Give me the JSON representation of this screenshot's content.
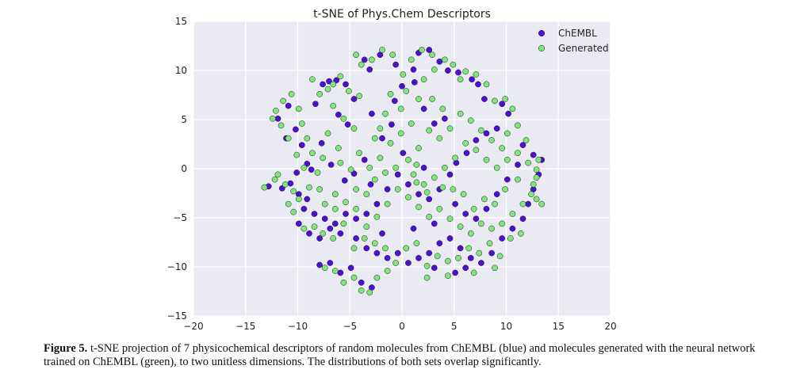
{
  "chart_data": {
    "type": "scatter",
    "title": "t-SNE of Phys.Chem Descriptors",
    "xlabel": "",
    "ylabel": "",
    "xlim": [
      -20,
      20
    ],
    "ylim": [
      -15,
      15
    ],
    "x_ticks": [
      -20,
      -15,
      -10,
      -5,
      0,
      5,
      10,
      15,
      20
    ],
    "y_ticks": [
      -15,
      -10,
      -5,
      0,
      5,
      10,
      15
    ],
    "grid": true,
    "legend_position": "top-right",
    "series": [
      {
        "name": "ChEMBL",
        "color": "#4b0fd6",
        "points": [
          [
            -12.8,
            -1.8
          ],
          [
            -11.5,
            -2.0
          ],
          [
            -10.7,
            -1.5
          ],
          [
            -10.9,
            6.4
          ],
          [
            -10.2,
            4.0
          ],
          [
            -9.6,
            2.4
          ],
          [
            -9.1,
            0.5
          ],
          [
            -8.7,
            -0.1
          ],
          [
            -8.3,
            6.6
          ],
          [
            -7.6,
            8.6
          ],
          [
            -7.0,
            8.9
          ],
          [
            -6.3,
            9.0
          ],
          [
            -5.4,
            8.6
          ],
          [
            -4.6,
            7.1
          ],
          [
            -6.1,
            5.5
          ],
          [
            -5.2,
            4.5
          ],
          [
            -7.7,
            2.6
          ],
          [
            -6.8,
            0.4
          ],
          [
            -5.5,
            -1.2
          ],
          [
            -4.6,
            -0.5
          ],
          [
            -3.6,
            0.9
          ],
          [
            -3.0,
            -1.6
          ],
          [
            -1.9,
            3.1
          ],
          [
            -1.0,
            4.5
          ],
          [
            -0.7,
            6.9
          ],
          [
            0.0,
            8.4
          ],
          [
            1.2,
            8.8
          ],
          [
            1.6,
            11.8
          ],
          [
            2.6,
            12.1
          ],
          [
            3.6,
            10.9
          ],
          [
            4.4,
            10.0
          ],
          [
            5.4,
            9.8
          ],
          [
            6.7,
            9.1
          ],
          [
            7.3,
            8.6
          ],
          [
            7.9,
            7.1
          ],
          [
            9.6,
            6.6
          ],
          [
            10.2,
            5.6
          ],
          [
            9.1,
            4.1
          ],
          [
            8.1,
            3.6
          ],
          [
            7.1,
            2.9
          ],
          [
            6.2,
            1.6
          ],
          [
            5.2,
            0.6
          ],
          [
            4.6,
            -0.6
          ],
          [
            3.6,
            -2.1
          ],
          [
            2.6,
            -3.1
          ],
          [
            1.6,
            -2.6
          ],
          [
            0.6,
            -1.6
          ],
          [
            -0.4,
            -0.6
          ],
          [
            -1.4,
            -2.1
          ],
          [
            -2.4,
            -3.6
          ],
          [
            -3.4,
            -4.6
          ],
          [
            -4.4,
            -5.1
          ],
          [
            -5.4,
            -4.6
          ],
          [
            -6.4,
            -5.6
          ],
          [
            -7.4,
            -5.1
          ],
          [
            -8.4,
            -4.6
          ],
          [
            -9.4,
            -4.1
          ],
          [
            -9.9,
            -5.6
          ],
          [
            -8.9,
            -6.6
          ],
          [
            -7.9,
            -7.1
          ],
          [
            -6.9,
            -6.1
          ],
          [
            -5.9,
            -6.6
          ],
          [
            -4.4,
            -7.1
          ],
          [
            -3.4,
            -8.1
          ],
          [
            -2.4,
            -8.6
          ],
          [
            -1.4,
            -9.1
          ],
          [
            -0.4,
            -8.6
          ],
          [
            0.6,
            -9.6
          ],
          [
            1.6,
            -9.1
          ],
          [
            2.6,
            -8.6
          ],
          [
            3.6,
            -7.6
          ],
          [
            4.6,
            -7.1
          ],
          [
            5.6,
            -8.1
          ],
          [
            6.6,
            -9.1
          ],
          [
            7.6,
            -9.6
          ],
          [
            8.6,
            -8.6
          ],
          [
            9.6,
            -7.1
          ],
          [
            10.6,
            -6.1
          ],
          [
            11.6,
            -5.1
          ],
          [
            12.1,
            -3.6
          ],
          [
            12.6,
            -2.1
          ],
          [
            13.1,
            -0.6
          ],
          [
            13.4,
            0.9
          ],
          [
            12.6,
            1.4
          ],
          [
            11.6,
            2.4
          ],
          [
            11.1,
            0.4
          ],
          [
            10.1,
            -1.1
          ],
          [
            9.1,
            -2.6
          ],
          [
            8.1,
            -4.1
          ],
          [
            7.1,
            -5.1
          ],
          [
            6.1,
            -4.6
          ],
          [
            5.1,
            -3.6
          ],
          [
            3.1,
            -5.6
          ],
          [
            1.1,
            -6.1
          ],
          [
            -1.9,
            -6.6
          ],
          [
            -3.9,
            -11.6
          ],
          [
            -2.9,
            -12.1
          ],
          [
            -4.9,
            -10.1
          ],
          [
            -5.9,
            -10.6
          ],
          [
            -6.9,
            -9.6
          ],
          [
            -7.9,
            -9.8
          ],
          [
            3.1,
            -10.1
          ],
          [
            5.1,
            -10.6
          ],
          [
            6.1,
            -10.1
          ],
          [
            -3.6,
            11.1
          ],
          [
            -3.1,
            10.1
          ],
          [
            -2.1,
            11.6
          ],
          [
            -0.6,
            10.6
          ],
          [
            1.1,
            10.1
          ],
          [
            2.1,
            6.1
          ],
          [
            3.1,
            4.6
          ],
          [
            4.1,
            5.1
          ],
          [
            -11.9,
            5.1
          ],
          [
            -11.1,
            3.1
          ],
          [
            -10.1,
            -0.4
          ],
          [
            -9.9,
            -2.6
          ],
          [
            -9.1,
            -3.1
          ],
          [
            2.1,
            0.1
          ],
          [
            0.1,
            1.6
          ],
          [
            -2.9,
            5.6
          ]
        ]
      },
      {
        "name": "Generated",
        "color": "#7fe67c",
        "points": [
          [
            -13.2,
            -1.9
          ],
          [
            -12.2,
            -1.1
          ],
          [
            -11.2,
            -1.6
          ],
          [
            -10.4,
            -2.3
          ],
          [
            -12.1,
            5.9
          ],
          [
            -11.4,
            6.9
          ],
          [
            -10.6,
            7.6
          ],
          [
            -9.9,
            6.1
          ],
          [
            -9.6,
            4.6
          ],
          [
            -10.9,
            3.1
          ],
          [
            -9.1,
            3.1
          ],
          [
            -8.6,
            1.6
          ],
          [
            -9.4,
            0.1
          ],
          [
            -8.1,
            -0.4
          ],
          [
            -7.9,
            7.6
          ],
          [
            -7.1,
            8.1
          ],
          [
            -8.6,
            9.1
          ],
          [
            -6.6,
            8.6
          ],
          [
            -5.9,
            9.4
          ],
          [
            -5.1,
            7.9
          ],
          [
            -4.1,
            7.4
          ],
          [
            -6.6,
            6.4
          ],
          [
            -5.6,
            5.1
          ],
          [
            -4.6,
            4.1
          ],
          [
            -7.1,
            3.6
          ],
          [
            -6.1,
            2.1
          ],
          [
            -7.6,
            1.1
          ],
          [
            -5.9,
            0.6
          ],
          [
            -4.9,
            -0.1
          ],
          [
            -4.1,
            1.6
          ],
          [
            -3.1,
            0.1
          ],
          [
            -2.1,
            1.1
          ],
          [
            -2.6,
            -1.1
          ],
          [
            -1.6,
            -0.4
          ],
          [
            -1.1,
            2.6
          ],
          [
            -0.1,
            3.6
          ],
          [
            0.9,
            4.6
          ],
          [
            -2.1,
            4.1
          ],
          [
            -1.6,
            5.6
          ],
          [
            -0.1,
            6.1
          ],
          [
            -1.1,
            7.6
          ],
          [
            0.4,
            7.9
          ],
          [
            1.6,
            7.1
          ],
          [
            2.1,
            9.1
          ],
          [
            0.9,
            11.1
          ],
          [
            1.9,
            12.1
          ],
          [
            2.9,
            11.6
          ],
          [
            3.1,
            10.1
          ],
          [
            4.1,
            11.1
          ],
          [
            4.9,
            10.6
          ],
          [
            5.6,
            9.1
          ],
          [
            6.1,
            9.9
          ],
          [
            7.1,
            9.6
          ],
          [
            8.1,
            8.6
          ],
          [
            8.9,
            6.9
          ],
          [
            9.9,
            7.1
          ],
          [
            10.6,
            6.1
          ],
          [
            11.1,
            4.4
          ],
          [
            10.1,
            3.6
          ],
          [
            9.6,
            2.1
          ],
          [
            8.6,
            2.9
          ],
          [
            7.6,
            3.9
          ],
          [
            6.6,
            4.9
          ],
          [
            5.6,
            5.6
          ],
          [
            4.6,
            4.1
          ],
          [
            3.6,
            3.1
          ],
          [
            2.6,
            3.9
          ],
          [
            1.6,
            2.1
          ],
          [
            0.6,
            0.9
          ],
          [
            1.1,
            -0.6
          ],
          [
            2.1,
            -1.6
          ],
          [
            3.1,
            -0.9
          ],
          [
            4.1,
            0.1
          ],
          [
            5.1,
            1.1
          ],
          [
            6.1,
            2.6
          ],
          [
            7.1,
            1.9
          ],
          [
            8.1,
            0.9
          ],
          [
            9.1,
            0.1
          ],
          [
            10.1,
            0.9
          ],
          [
            11.1,
            1.6
          ],
          [
            12.1,
            0.6
          ],
          [
            12.9,
            -0.9
          ],
          [
            12.4,
            -2.6
          ],
          [
            11.6,
            -3.6
          ],
          [
            10.6,
            -4.6
          ],
          [
            9.6,
            -5.6
          ],
          [
            8.6,
            -6.1
          ],
          [
            7.6,
            -5.6
          ],
          [
            6.6,
            -6.6
          ],
          [
            5.6,
            -5.9
          ],
          [
            4.6,
            -5.1
          ],
          [
            3.6,
            -4.1
          ],
          [
            2.6,
            -4.9
          ],
          [
            1.6,
            -3.9
          ],
          [
            0.6,
            -2.9
          ],
          [
            -0.4,
            -2.1
          ],
          [
            -1.4,
            -3.6
          ],
          [
            -2.4,
            -4.9
          ],
          [
            -3.4,
            -5.9
          ],
          [
            -4.4,
            -4.1
          ],
          [
            -5.4,
            -3.4
          ],
          [
            -6.4,
            -4.1
          ],
          [
            -7.4,
            -3.6
          ],
          [
            -8.4,
            -5.9
          ],
          [
            -9.4,
            -6.1
          ],
          [
            -10.4,
            -4.4
          ],
          [
            -10.9,
            -3.6
          ],
          [
            -7.6,
            -6.6
          ],
          [
            -6.6,
            -7.1
          ],
          [
            -5.6,
            -5.6
          ],
          [
            -4.6,
            -8.1
          ],
          [
            -3.6,
            -7.1
          ],
          [
            -2.6,
            -7.6
          ],
          [
            -1.6,
            -8.1
          ],
          [
            -0.6,
            -9.6
          ],
          [
            0.4,
            -8.1
          ],
          [
            1.4,
            -7.6
          ],
          [
            2.4,
            -9.9
          ],
          [
            3.4,
            -8.9
          ],
          [
            4.4,
            -9.4
          ],
          [
            5.4,
            -9.1
          ],
          [
            6.4,
            -8.1
          ],
          [
            7.4,
            -8.6
          ],
          [
            8.4,
            -7.6
          ],
          [
            9.4,
            -8.9
          ],
          [
            10.4,
            -7.1
          ],
          [
            11.4,
            -6.6
          ],
          [
            12.9,
            -3.1
          ],
          [
            13.4,
            -3.6
          ],
          [
            12.9,
            -0.1
          ],
          [
            11.9,
            2.9
          ],
          [
            -3.9,
            -12.4
          ],
          [
            -3.1,
            -12.6
          ],
          [
            -4.6,
            -11.1
          ],
          [
            -5.6,
            -11.6
          ],
          [
            -6.4,
            -10.4
          ],
          [
            -7.4,
            -10.1
          ],
          [
            -2.4,
            -11.1
          ],
          [
            -1.4,
            -10.4
          ],
          [
            2.4,
            -11.1
          ],
          [
            4.4,
            -10.9
          ],
          [
            6.9,
            -10.6
          ],
          [
            8.9,
            -10.1
          ],
          [
            -3.9,
            10.6
          ],
          [
            -4.4,
            11.6
          ],
          [
            -2.9,
            11.1
          ],
          [
            -1.9,
            12.1
          ],
          [
            -0.9,
            11.6
          ],
          [
            0.1,
            9.6
          ],
          [
            2.9,
            7.1
          ],
          [
            3.9,
            6.1
          ],
          [
            -11.6,
            4.4
          ],
          [
            -12.4,
            5.1
          ],
          [
            -10.1,
            1.4
          ],
          [
            -8.9,
            -1.9
          ],
          [
            -9.9,
            -3.1
          ],
          [
            -11.9,
            -0.6
          ],
          [
            1.4,
            0.4
          ],
          [
            -0.6,
            0.1
          ],
          [
            -2.6,
            3.1
          ],
          [
            13.1,
            0.9
          ],
          [
            12.6,
            -1.6
          ],
          [
            11.1,
            -1.1
          ],
          [
            9.9,
            -2.1
          ],
          [
            8.9,
            -3.6
          ],
          [
            7.9,
            -3.1
          ],
          [
            6.9,
            -4.1
          ],
          [
            5.9,
            -2.6
          ],
          [
            4.9,
            -2.1
          ],
          [
            3.9,
            -1.9
          ],
          [
            2.4,
            -2.4
          ],
          [
            1.4,
            -1.4
          ],
          [
            -3.4,
            -2.6
          ],
          [
            -4.4,
            -2.1
          ],
          [
            -6.4,
            -2.6
          ],
          [
            -7.9,
            -2.1
          ]
        ]
      }
    ]
  },
  "caption": {
    "label": "Figure 5.",
    "text": " t-SNE projection of 7 physicochemical descriptors of random molecules from ChEMBL (blue) and molecules generated with the neural network trained on ChEMBL (green), to two unitless dimensions. The distributions of both sets overlap significantly."
  }
}
